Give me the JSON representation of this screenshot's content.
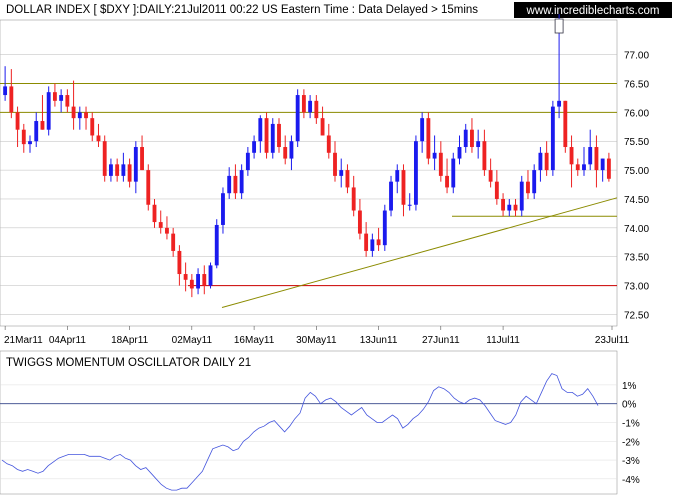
{
  "header": {
    "title": "DOLLAR INDEX [ $DXY ]:DAILY:21Jul2011 00:22 US Eastern Time  : Data Delayed > 15mins",
    "brand": "www.incrediblecharts.com"
  },
  "chart_data": [
    {
      "type": "candlestick",
      "title": "DOLLAR INDEX [ $DXY ]:DAILY:21Jul2011 00:22 US Eastern Time  : Data Delayed > 15mins",
      "x_tick_labels": [
        "21Mar11",
        "04Apr11",
        "18Apr11",
        "02May11",
        "16May11",
        "30May11",
        "13Jun11",
        "27Jun11",
        "11Jul11",
        "23Jul11"
      ],
      "y_tick_labels": [
        "72.50",
        "73.00",
        "73.50",
        "74.00",
        "74.50",
        "75.00",
        "75.50",
        "76.00",
        "76.50",
        "77.00"
      ],
      "ylim": [
        72.3,
        77.6
      ],
      "grid": true,
      "colors": {
        "up": "#1a1aee",
        "down": "#ee2222",
        "wick": "#000000",
        "resistance": "#8b8b00",
        "support": "#cc0000",
        "trendline": "#8b8b00"
      },
      "horizontal_lines": [
        {
          "y": 76.5,
          "color": "#8b8b00"
        },
        {
          "y": 76.0,
          "color": "#8b8b00"
        },
        {
          "y": 73.0,
          "color": "#cc0000",
          "from_x": 188
        },
        {
          "y": 74.2,
          "color": "#8b8b00",
          "from_x": 452
        }
      ],
      "trendline": {
        "x1": 222,
        "y1": 72.62,
        "x2": 617,
        "y2": 74.52
      },
      "candles": [
        {
          "o": 76.3,
          "h": 76.8,
          "l": 76.2,
          "c": 76.45
        },
        {
          "o": 76.45,
          "h": 76.75,
          "l": 75.9,
          "c": 76.0
        },
        {
          "o": 76.0,
          "h": 76.1,
          "l": 75.4,
          "c": 75.7
        },
        {
          "o": 75.7,
          "h": 75.8,
          "l": 75.3,
          "c": 75.45
        },
        {
          "o": 75.45,
          "h": 75.6,
          "l": 75.3,
          "c": 75.5
        },
        {
          "o": 75.5,
          "h": 76.0,
          "l": 75.4,
          "c": 75.85
        },
        {
          "o": 75.85,
          "h": 76.3,
          "l": 75.7,
          "c": 75.7
        },
        {
          "o": 75.7,
          "h": 76.45,
          "l": 75.6,
          "c": 76.35
        },
        {
          "o": 76.35,
          "h": 76.5,
          "l": 76.1,
          "c": 76.2
        },
        {
          "o": 76.2,
          "h": 76.4,
          "l": 76.0,
          "c": 76.3
        },
        {
          "o": 76.3,
          "h": 76.4,
          "l": 76.0,
          "c": 76.1
        },
        {
          "o": 76.1,
          "h": 76.55,
          "l": 75.7,
          "c": 75.9
        },
        {
          "o": 75.9,
          "h": 76.1,
          "l": 75.7,
          "c": 76.0
        },
        {
          "o": 76.0,
          "h": 76.1,
          "l": 75.7,
          "c": 75.9
        },
        {
          "o": 75.9,
          "h": 76.0,
          "l": 75.5,
          "c": 75.6
        },
        {
          "o": 75.6,
          "h": 75.8,
          "l": 75.4,
          "c": 75.5
        },
        {
          "o": 75.5,
          "h": 75.6,
          "l": 74.8,
          "c": 74.9
        },
        {
          "o": 74.9,
          "h": 75.2,
          "l": 74.8,
          "c": 75.1
        },
        {
          "o": 75.1,
          "h": 75.2,
          "l": 74.8,
          "c": 74.9
        },
        {
          "o": 74.9,
          "h": 75.3,
          "l": 74.8,
          "c": 75.1
        },
        {
          "o": 75.1,
          "h": 75.2,
          "l": 74.7,
          "c": 74.8
        },
        {
          "o": 74.8,
          "h": 75.5,
          "l": 74.6,
          "c": 75.4
        },
        {
          "o": 75.4,
          "h": 75.6,
          "l": 75.0,
          "c": 75.0
        },
        {
          "o": 75.0,
          "h": 75.1,
          "l": 74.3,
          "c": 74.4
        },
        {
          "o": 74.4,
          "h": 74.5,
          "l": 74.0,
          "c": 74.1
        },
        {
          "o": 74.1,
          "h": 74.3,
          "l": 73.9,
          "c": 74.0
        },
        {
          "o": 74.0,
          "h": 74.2,
          "l": 73.8,
          "c": 73.9
        },
        {
          "o": 73.9,
          "h": 74.0,
          "l": 73.5,
          "c": 73.6
        },
        {
          "o": 73.6,
          "h": 73.7,
          "l": 73.0,
          "c": 73.2
        },
        {
          "o": 73.2,
          "h": 73.4,
          "l": 72.9,
          "c": 73.1
        },
        {
          "o": 73.1,
          "h": 73.2,
          "l": 72.8,
          "c": 72.95
        },
        {
          "o": 72.95,
          "h": 73.3,
          "l": 72.85,
          "c": 73.2
        },
        {
          "o": 73.2,
          "h": 73.35,
          "l": 72.85,
          "c": 73.0
        },
        {
          "o": 73.0,
          "h": 73.4,
          "l": 72.95,
          "c": 73.35
        },
        {
          "o": 73.35,
          "h": 74.15,
          "l": 73.3,
          "c": 74.05
        },
        {
          "o": 74.05,
          "h": 74.7,
          "l": 73.9,
          "c": 74.6
        },
        {
          "o": 74.6,
          "h": 75.05,
          "l": 74.5,
          "c": 74.9
        },
        {
          "o": 74.9,
          "h": 75.1,
          "l": 74.5,
          "c": 74.6
        },
        {
          "o": 74.6,
          "h": 75.1,
          "l": 74.5,
          "c": 75.0
        },
        {
          "o": 75.0,
          "h": 75.4,
          "l": 74.9,
          "c": 75.3
        },
        {
          "o": 75.3,
          "h": 75.6,
          "l": 75.2,
          "c": 75.5
        },
        {
          "o": 75.5,
          "h": 75.95,
          "l": 75.3,
          "c": 75.9
        },
        {
          "o": 75.9,
          "h": 76.0,
          "l": 75.2,
          "c": 75.3
        },
        {
          "o": 75.3,
          "h": 75.9,
          "l": 75.2,
          "c": 75.8
        },
        {
          "o": 75.8,
          "h": 75.9,
          "l": 75.3,
          "c": 75.4
        },
        {
          "o": 75.4,
          "h": 75.6,
          "l": 75.1,
          "c": 75.2
        },
        {
          "o": 75.2,
          "h": 75.6,
          "l": 75.0,
          "c": 75.5
        },
        {
          "o": 75.5,
          "h": 76.4,
          "l": 75.4,
          "c": 76.3
        },
        {
          "o": 76.3,
          "h": 76.4,
          "l": 75.9,
          "c": 76.0
        },
        {
          "o": 76.0,
          "h": 76.3,
          "l": 75.9,
          "c": 76.2
        },
        {
          "o": 76.2,
          "h": 76.3,
          "l": 75.8,
          "c": 75.9
        },
        {
          "o": 75.9,
          "h": 76.1,
          "l": 75.6,
          "c": 75.6
        },
        {
          "o": 75.6,
          "h": 75.8,
          "l": 75.2,
          "c": 75.3
        },
        {
          "o": 75.3,
          "h": 75.5,
          "l": 74.8,
          "c": 74.9
        },
        {
          "o": 74.9,
          "h": 75.2,
          "l": 74.7,
          "c": 75.0
        },
        {
          "o": 75.0,
          "h": 75.1,
          "l": 74.6,
          "c": 74.7
        },
        {
          "o": 74.7,
          "h": 74.9,
          "l": 74.2,
          "c": 74.3
        },
        {
          "o": 74.3,
          "h": 74.5,
          "l": 73.8,
          "c": 73.9
        },
        {
          "o": 73.9,
          "h": 74.1,
          "l": 73.5,
          "c": 73.6
        },
        {
          "o": 73.6,
          "h": 73.9,
          "l": 73.5,
          "c": 73.8
        },
        {
          "o": 73.8,
          "h": 74.0,
          "l": 73.6,
          "c": 73.7
        },
        {
          "o": 73.7,
          "h": 74.4,
          "l": 73.6,
          "c": 74.3
        },
        {
          "o": 74.3,
          "h": 74.9,
          "l": 74.2,
          "c": 74.8
        },
        {
          "o": 74.8,
          "h": 75.1,
          "l": 74.6,
          "c": 75.0
        },
        {
          "o": 75.0,
          "h": 75.1,
          "l": 74.2,
          "c": 74.4
        },
        {
          "o": 74.4,
          "h": 74.6,
          "l": 74.3,
          "c": 74.4
        },
        {
          "o": 74.4,
          "h": 75.6,
          "l": 74.3,
          "c": 75.5
        },
        {
          "o": 75.5,
          "h": 76.0,
          "l": 75.3,
          "c": 75.9
        },
        {
          "o": 75.9,
          "h": 76.0,
          "l": 75.1,
          "c": 75.2
        },
        {
          "o": 75.2,
          "h": 75.6,
          "l": 75.0,
          "c": 75.3
        },
        {
          "o": 75.3,
          "h": 75.5,
          "l": 74.8,
          "c": 74.9
        },
        {
          "o": 74.9,
          "h": 75.2,
          "l": 74.6,
          "c": 74.7
        },
        {
          "o": 74.7,
          "h": 75.3,
          "l": 74.6,
          "c": 75.2
        },
        {
          "o": 75.2,
          "h": 75.6,
          "l": 75.1,
          "c": 75.4
        },
        {
          "o": 75.4,
          "h": 75.8,
          "l": 75.3,
          "c": 75.7
        },
        {
          "o": 75.7,
          "h": 75.9,
          "l": 75.3,
          "c": 75.4
        },
        {
          "o": 75.4,
          "h": 75.7,
          "l": 75.2,
          "c": 75.5
        },
        {
          "o": 75.5,
          "h": 75.7,
          "l": 74.9,
          "c": 75.0
        },
        {
          "o": 75.0,
          "h": 75.2,
          "l": 74.7,
          "c": 74.8
        },
        {
          "o": 74.8,
          "h": 75.0,
          "l": 74.4,
          "c": 74.5
        },
        {
          "o": 74.5,
          "h": 74.6,
          "l": 74.2,
          "c": 74.3
        },
        {
          "o": 74.3,
          "h": 74.5,
          "l": 74.2,
          "c": 74.4
        },
        {
          "o": 74.4,
          "h": 74.5,
          "l": 74.2,
          "c": 74.3
        },
        {
          "o": 74.3,
          "h": 74.9,
          "l": 74.2,
          "c": 74.8
        },
        {
          "o": 74.8,
          "h": 75.0,
          "l": 74.5,
          "c": 74.6
        },
        {
          "o": 74.6,
          "h": 75.1,
          "l": 74.5,
          "c": 75.0
        },
        {
          "o": 75.0,
          "h": 75.4,
          "l": 74.8,
          "c": 75.3
        },
        {
          "o": 75.3,
          "h": 75.5,
          "l": 74.9,
          "c": 75.0
        },
        {
          "o": 75.0,
          "h": 76.2,
          "l": 74.9,
          "c": 76.1
        },
        {
          "o": 76.1,
          "h": 77.7,
          "l": 75.9,
          "c": 76.2
        },
        {
          "o": 76.2,
          "h": 76.2,
          "l": 75.3,
          "c": 75.4
        },
        {
          "o": 75.4,
          "h": 75.6,
          "l": 74.7,
          "c": 75.1
        },
        {
          "o": 75.1,
          "h": 75.2,
          "l": 74.9,
          "c": 75.0
        },
        {
          "o": 75.0,
          "h": 75.4,
          "l": 74.9,
          "c": 75.1
        },
        {
          "o": 75.1,
          "h": 75.7,
          "l": 75.0,
          "c": 75.4
        },
        {
          "o": 75.4,
          "h": 75.6,
          "l": 74.7,
          "c": 75.0
        },
        {
          "o": 75.0,
          "h": 75.2,
          "l": 74.8,
          "c": 75.2
        },
        {
          "o": 75.2,
          "h": 75.3,
          "l": 74.8,
          "c": 74.85
        }
      ]
    },
    {
      "type": "line",
      "title": "TWIGGS MOMENTUM OSCILLATOR DAILY 21",
      "y_tick_labels": [
        "1%",
        "0%",
        "-1%",
        "-2%",
        "-3%",
        "-4%"
      ],
      "ylim": [
        -4.7,
        1.9
      ],
      "zero_line": true,
      "color": "#4455dd",
      "values": [
        -3.0,
        -3.2,
        -3.3,
        -3.5,
        -3.6,
        -3.5,
        -3.6,
        -3.7,
        -3.6,
        -3.3,
        -3.1,
        -2.9,
        -2.8,
        -2.7,
        -2.7,
        -2.7,
        -2.7,
        -2.8,
        -2.8,
        -2.8,
        -2.9,
        -3.0,
        -2.8,
        -2.7,
        -2.9,
        -3.0,
        -3.3,
        -3.5,
        -3.4,
        -3.7,
        -4.0,
        -4.3,
        -4.5,
        -4.6,
        -4.6,
        -4.5,
        -4.5,
        -4.2,
        -3.9,
        -3.6,
        -3.0,
        -2.4,
        -2.3,
        -2.2,
        -2.3,
        -2.5,
        -2.4,
        -2.0,
        -1.8,
        -1.5,
        -1.3,
        -1.2,
        -1.0,
        -0.9,
        -1.2,
        -1.5,
        -1.2,
        -0.8,
        -0.5,
        0.3,
        0.6,
        0.4,
        0.0,
        0.2,
        0.3,
        0.1,
        -0.2,
        -0.4,
        -0.6,
        -0.4,
        -0.2,
        -0.6,
        -0.8,
        -1.0,
        -1.0,
        -0.8,
        -0.6,
        -0.8,
        -1.3,
        -1.1,
        -0.8,
        -0.6,
        -0.3,
        0.1,
        0.7,
        0.9,
        0.8,
        0.6,
        0.3,
        0.1,
        0.0,
        0.2,
        0.3,
        0.2,
        -0.1,
        -0.5,
        -0.9,
        -1.0,
        -1.1,
        -1.0,
        -0.6,
        0.1,
        0.4,
        0.2,
        0.0,
        0.6,
        1.2,
        1.6,
        1.5,
        0.8,
        0.6,
        0.6,
        0.4,
        0.5,
        0.8,
        0.4,
        -0.1
      ]
    }
  ]
}
